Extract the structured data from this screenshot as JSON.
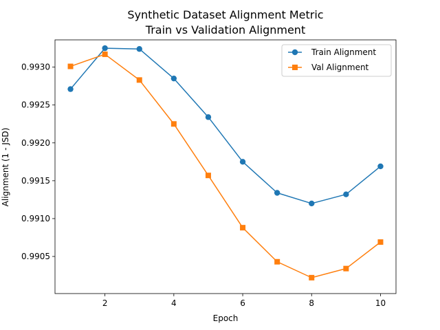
{
  "chart_data": {
    "type": "line",
    "title": "Synthetic Dataset Alignment Metric",
    "subtitle": "Train vs Validation Alignment",
    "xlabel": "Epoch",
    "ylabel": "Alignment (1 - JSD)",
    "x": [
      1,
      2,
      3,
      4,
      5,
      6,
      7,
      8,
      9,
      10
    ],
    "xlim": [
      0.55,
      10.45
    ],
    "ylim": [
      0.99001,
      0.99336
    ],
    "xticks": [
      2,
      4,
      6,
      8,
      10
    ],
    "yticks": [
      0.9905,
      0.991,
      0.9915,
      0.992,
      0.9925,
      0.993
    ],
    "xtick_labels": [
      "2",
      "4",
      "6",
      "8",
      "10"
    ],
    "ytick_labels": [
      "0.9905",
      "0.9910",
      "0.9915",
      "0.9920",
      "0.9925",
      "0.9930"
    ],
    "grid": false,
    "legend_position": "upper-right",
    "series": [
      {
        "name": "Train Alignment",
        "color": "#1f77b4",
        "marker": "circle",
        "values": [
          0.99271,
          0.99325,
          0.99324,
          0.99285,
          0.99234,
          0.99175,
          0.99134,
          0.9912,
          0.99132,
          0.99169
        ]
      },
      {
        "name": "Val Alignment",
        "color": "#ff7f0e",
        "marker": "square",
        "values": [
          0.99301,
          0.99317,
          0.99283,
          0.99225,
          0.99157,
          0.99088,
          0.99043,
          0.99022,
          0.99034,
          0.99069
        ]
      }
    ]
  }
}
